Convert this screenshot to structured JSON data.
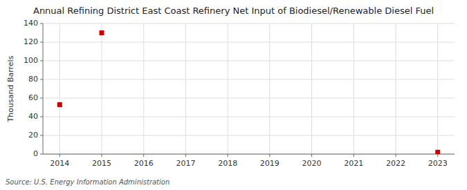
{
  "chart_data": {
    "type": "scatter",
    "title": "Annual Refining District East Coast Refinery Net Input of Biodiesel/Renewable Diesel Fuel",
    "ylabel": "Thousand Barrels",
    "annotations": [
      "Source: U.S. Energy Information Administration"
    ],
    "x": [
      2014,
      2015,
      2023
    ],
    "values": [
      53,
      130,
      2
    ],
    "color": "#cc0000",
    "marker": "square",
    "xlim": [
      2013.6,
      2023.4
    ],
    "ylim": [
      0,
      140
    ],
    "xticks": [
      2014,
      2015,
      2016,
      2017,
      2018,
      2019,
      2020,
      2021,
      2022,
      2023
    ],
    "yticks": [
      0,
      20,
      40,
      60,
      80,
      100,
      120,
      140
    ],
    "grid": true
  }
}
